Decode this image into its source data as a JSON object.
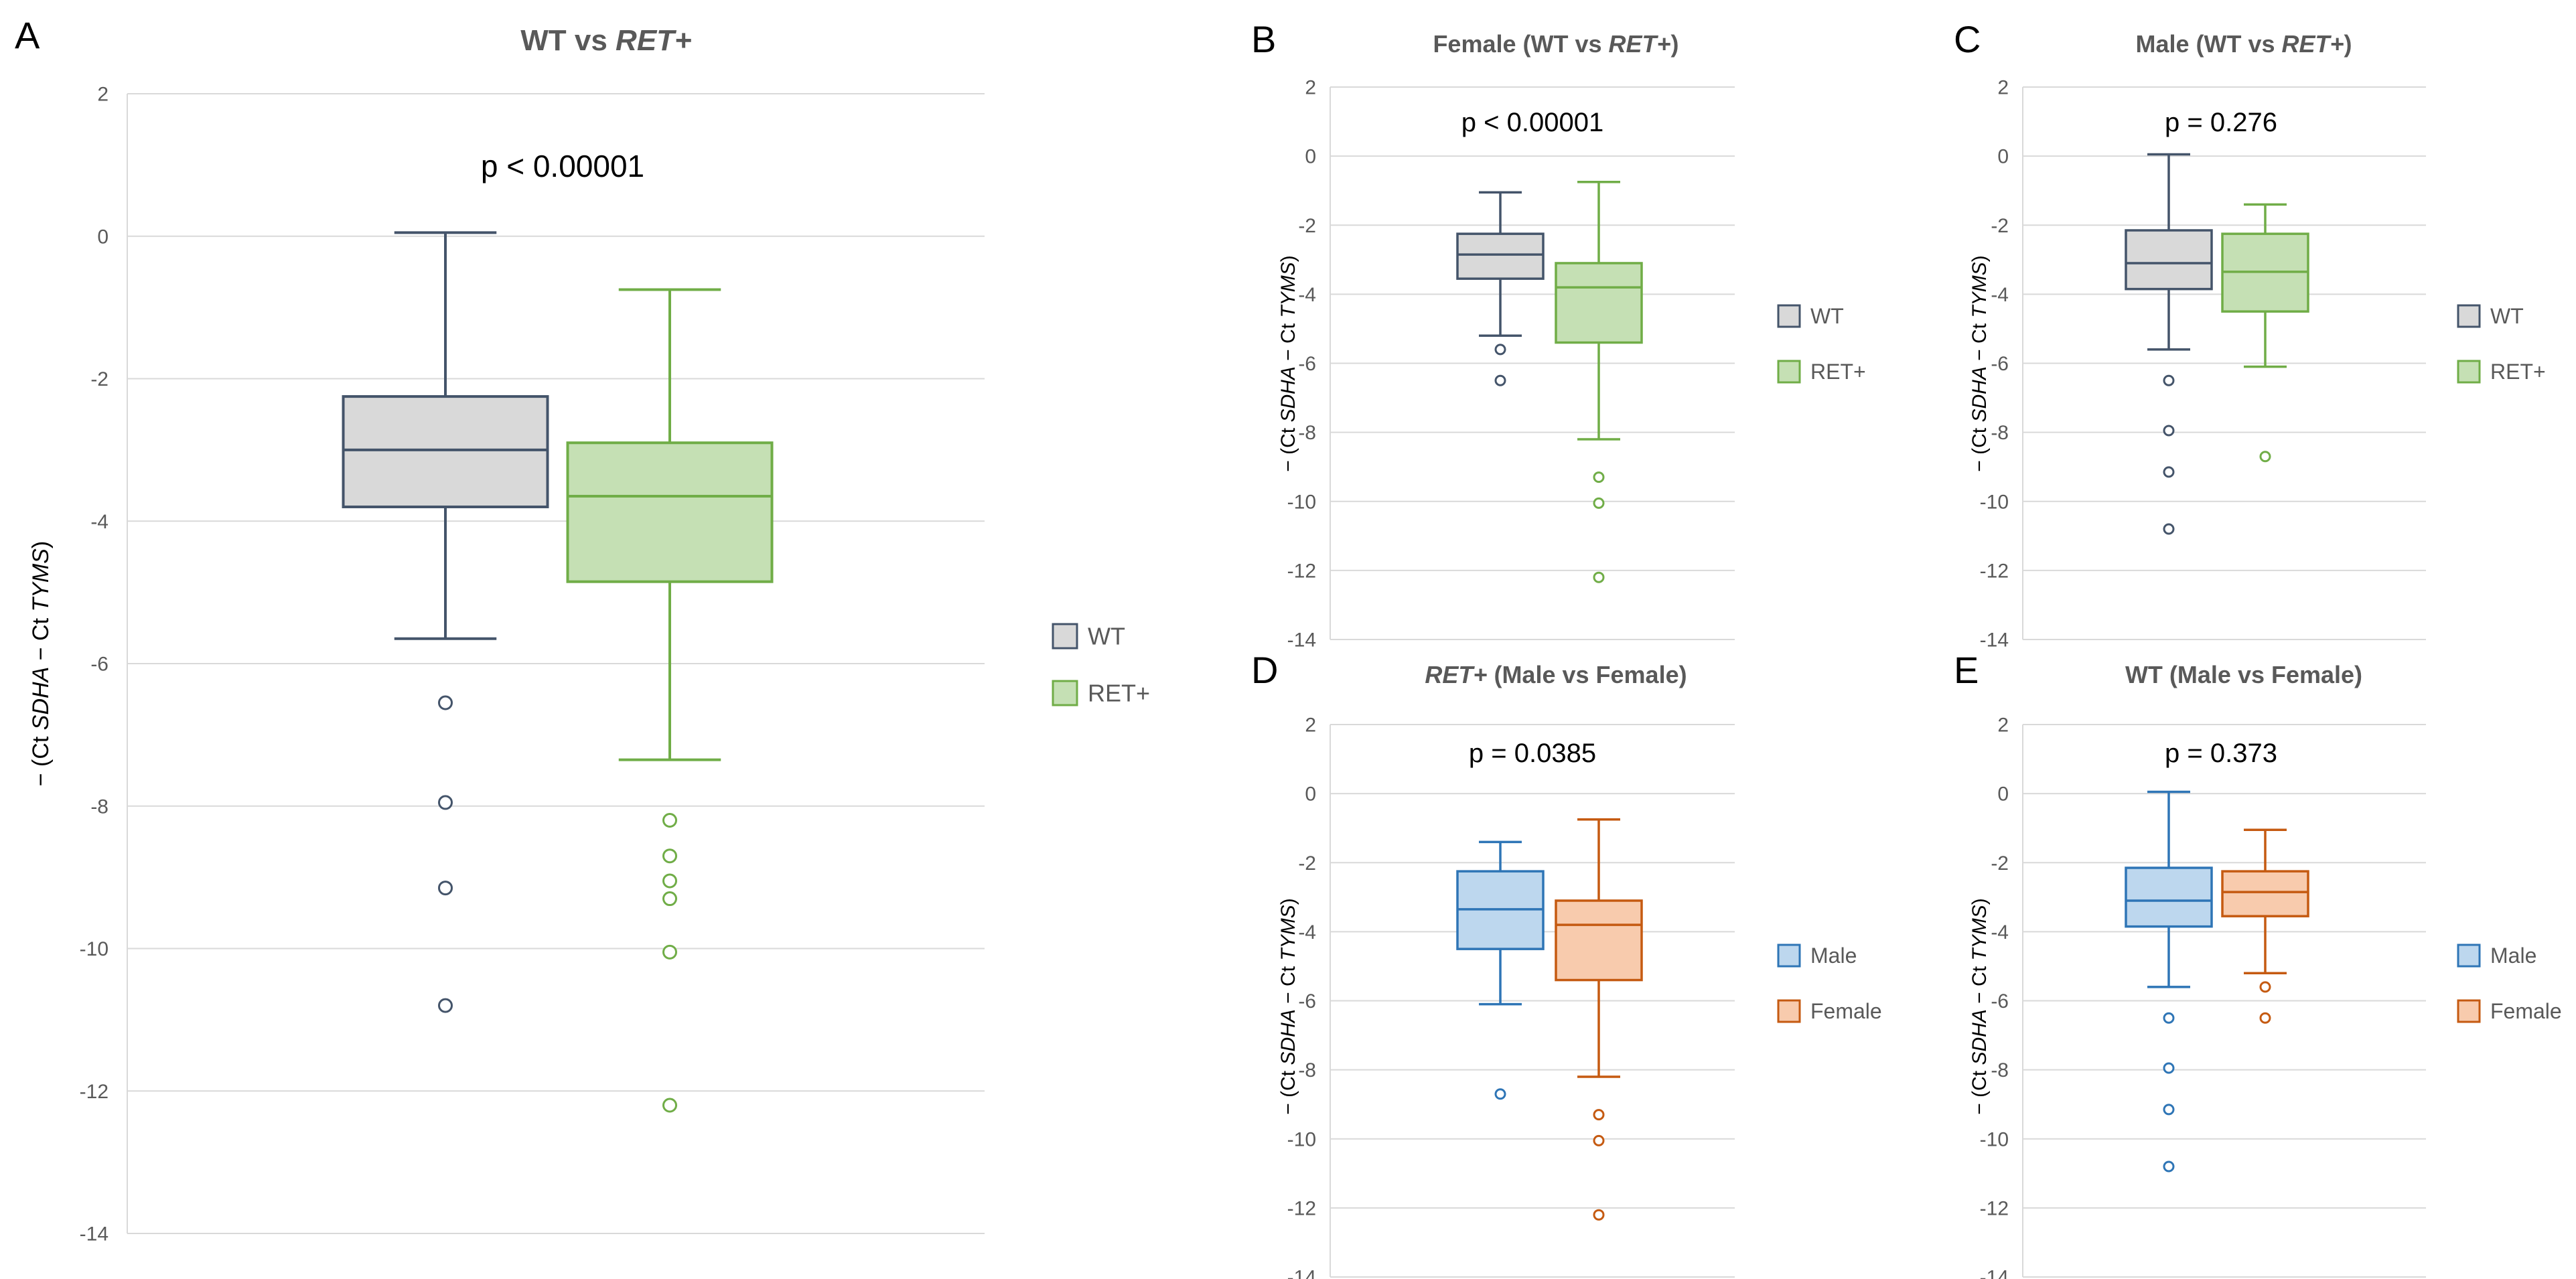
{
  "figure": {
    "colors": {
      "axis_text": "#595959",
      "gridline": "#d9d9d9",
      "title": "#595959",
      "panel_letter": "#000000",
      "pvalue": "#000000"
    },
    "series_styles": {
      "WT": {
        "fill": "#d9d9d9",
        "stroke": "#44546a"
      },
      "RET+": {
        "fill": "#c5e0b4",
        "stroke": "#70ad47"
      },
      "Male": {
        "fill": "#bdd7ee",
        "stroke": "#2e75b6"
      },
      "Female": {
        "fill": "#f8cbad",
        "stroke": "#c55a11"
      }
    }
  },
  "chart_data": [
    {
      "panel": "A",
      "type": "boxplot",
      "title_parts": [
        {
          "text": "WT vs ",
          "italic": false
        },
        {
          "text": "RET+",
          "italic": true
        }
      ],
      "pvalue": "p < 0.00001",
      "ylabel_parts": [
        {
          "text": "− (Ct ",
          "italic": false
        },
        {
          "text": "SDHA",
          "italic": true
        },
        {
          "text": " − Ct ",
          "italic": false
        },
        {
          "text": "TYMS",
          "italic": true
        },
        {
          "text": ")",
          "italic": false
        }
      ],
      "ylim": [
        -14,
        2
      ],
      "yticks": [
        2,
        0,
        -2,
        -4,
        -6,
        -8,
        -10,
        -12,
        -14
      ],
      "legend": [
        "WT",
        "RET+"
      ],
      "series": [
        {
          "name": "WT",
          "whisker_low": -5.65,
          "q1": -3.8,
          "median": -3.0,
          "q3": -2.25,
          "whisker_high": 0.05,
          "outliers": [
            -6.55,
            -7.95,
            -9.15,
            -10.8
          ]
        },
        {
          "name": "RET+",
          "whisker_low": -7.35,
          "q1": -4.85,
          "median": -3.65,
          "q3": -2.9,
          "whisker_high": -0.75,
          "outliers": [
            -8.2,
            -8.7,
            -9.05,
            -9.3,
            -10.05,
            -12.2
          ]
        }
      ]
    },
    {
      "panel": "B",
      "type": "boxplot",
      "title_parts": [
        {
          "text": "Female (WT vs ",
          "italic": false
        },
        {
          "text": "RET+",
          "italic": true
        },
        {
          "text": ")",
          "italic": false
        }
      ],
      "pvalue": "p < 0.00001",
      "ylabel_parts": [
        {
          "text": "− (Ct ",
          "italic": false
        },
        {
          "text": "SDHA",
          "italic": true
        },
        {
          "text": " − Ct ",
          "italic": false
        },
        {
          "text": "TYMS",
          "italic": true
        },
        {
          "text": ")",
          "italic": false
        }
      ],
      "ylim": [
        -14,
        2
      ],
      "yticks": [
        2,
        0,
        -2,
        -4,
        -6,
        -8,
        -10,
        -12,
        -14
      ],
      "legend": [
        "WT",
        "RET+"
      ],
      "series": [
        {
          "name": "WT",
          "whisker_low": -5.2,
          "q1": -3.55,
          "median": -2.85,
          "q3": -2.25,
          "whisker_high": -1.05,
          "outliers": [
            -5.6,
            -6.5
          ]
        },
        {
          "name": "RET+",
          "whisker_low": -8.2,
          "q1": -5.4,
          "median": -3.8,
          "q3": -3.1,
          "whisker_high": -0.75,
          "outliers": [
            -9.3,
            -10.05,
            -12.2
          ]
        }
      ]
    },
    {
      "panel": "C",
      "type": "boxplot",
      "title_parts": [
        {
          "text": "Male (WT vs ",
          "italic": false
        },
        {
          "text": "RET+",
          "italic": true
        },
        {
          "text": ")",
          "italic": false
        }
      ],
      "pvalue": "p = 0.276",
      "ylabel_parts": [
        {
          "text": "− (Ct ",
          "italic": false
        },
        {
          "text": "SDHA",
          "italic": true
        },
        {
          "text": " − Ct ",
          "italic": false
        },
        {
          "text": "TYMS",
          "italic": true
        },
        {
          "text": ")",
          "italic": false
        }
      ],
      "ylim": [
        -14,
        2
      ],
      "yticks": [
        2,
        0,
        -2,
        -4,
        -6,
        -8,
        -10,
        -12,
        -14
      ],
      "legend": [
        "WT",
        "RET+"
      ],
      "series": [
        {
          "name": "WT",
          "whisker_low": -5.6,
          "q1": -3.85,
          "median": -3.1,
          "q3": -2.15,
          "whisker_high": 0.05,
          "outliers": [
            -6.5,
            -7.95,
            -9.15,
            -10.8
          ]
        },
        {
          "name": "RET+",
          "whisker_low": -6.1,
          "q1": -4.5,
          "median": -3.35,
          "q3": -2.25,
          "whisker_high": -1.4,
          "outliers": [
            -8.7
          ]
        }
      ]
    },
    {
      "panel": "D",
      "type": "boxplot",
      "title_parts": [
        {
          "text": "RET+",
          "italic": true
        },
        {
          "text": " (Male vs Female)",
          "italic": false
        }
      ],
      "pvalue": "p = 0.0385",
      "ylabel_parts": [
        {
          "text": "− (Ct ",
          "italic": false
        },
        {
          "text": "SDHA",
          "italic": true
        },
        {
          "text": " − Ct ",
          "italic": false
        },
        {
          "text": "TYMS",
          "italic": true
        },
        {
          "text": ")",
          "italic": false
        }
      ],
      "ylim": [
        -14,
        2
      ],
      "yticks": [
        2,
        0,
        -2,
        -4,
        -6,
        -8,
        -10,
        -12,
        -14
      ],
      "legend": [
        "Male",
        "Female"
      ],
      "series": [
        {
          "name": "Male",
          "whisker_low": -6.1,
          "q1": -4.5,
          "median": -3.35,
          "q3": -2.25,
          "whisker_high": -1.4,
          "outliers": [
            -8.7
          ]
        },
        {
          "name": "Female",
          "whisker_low": -8.2,
          "q1": -5.4,
          "median": -3.8,
          "q3": -3.1,
          "whisker_high": -0.75,
          "outliers": [
            -9.3,
            -10.05,
            -12.2
          ]
        }
      ]
    },
    {
      "panel": "E",
      "type": "boxplot",
      "title_parts": [
        {
          "text": "WT (Male vs Female)",
          "italic": false
        }
      ],
      "pvalue": "p = 0.373",
      "ylabel_parts": [
        {
          "text": "− (Ct ",
          "italic": false
        },
        {
          "text": "SDHA",
          "italic": true
        },
        {
          "text": " − Ct ",
          "italic": false
        },
        {
          "text": "TYMS",
          "italic": true
        },
        {
          "text": ")",
          "italic": false
        }
      ],
      "ylim": [
        -14,
        2
      ],
      "yticks": [
        2,
        0,
        -2,
        -4,
        -6,
        -8,
        -10,
        -12,
        -14
      ],
      "legend": [
        "Male",
        "Female"
      ],
      "series": [
        {
          "name": "Male",
          "whisker_low": -5.6,
          "q1": -3.85,
          "median": -3.1,
          "q3": -2.15,
          "whisker_high": 0.05,
          "outliers": [
            -6.5,
            -7.95,
            -9.15,
            -10.8
          ]
        },
        {
          "name": "Female",
          "whisker_low": -5.2,
          "q1": -3.55,
          "median": -2.85,
          "q3": -2.25,
          "whisker_high": -1.05,
          "outliers": [
            -5.6,
            -6.5
          ]
        }
      ]
    }
  ]
}
